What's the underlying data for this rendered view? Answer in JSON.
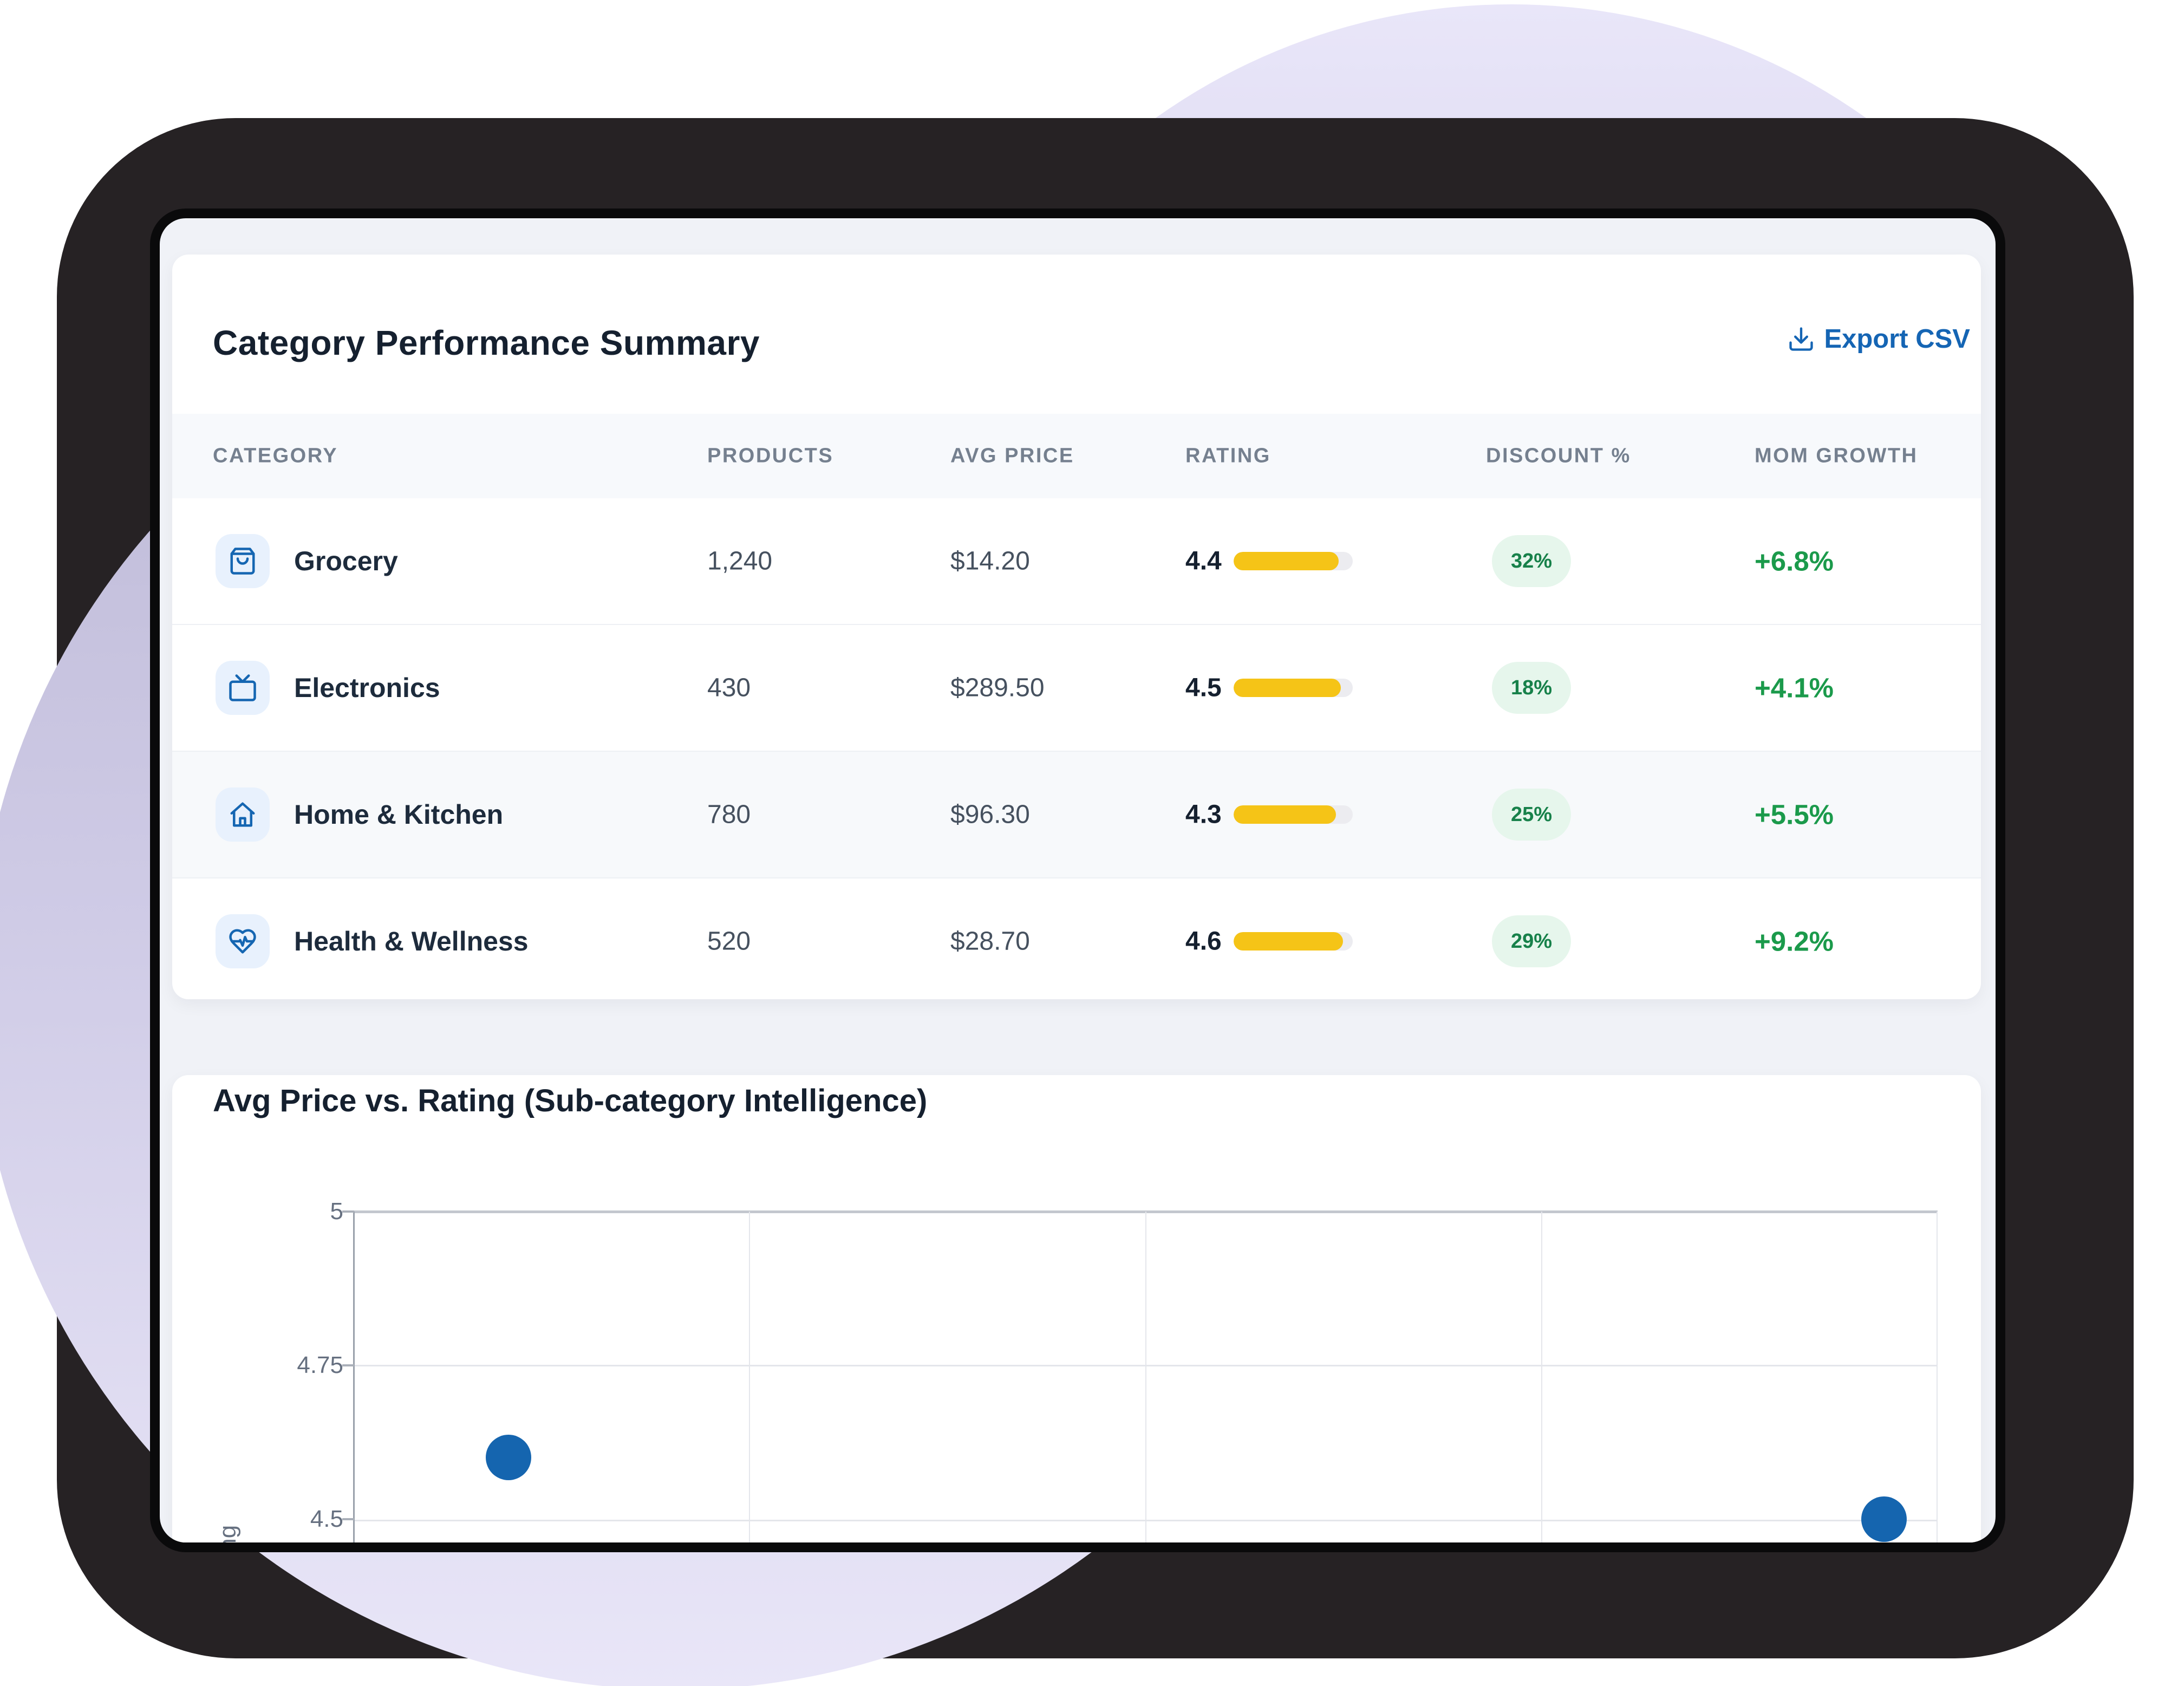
{
  "table_card": {
    "title": "Category Performance Summary",
    "export_label": "Export CSV",
    "columns": [
      "CATEGORY",
      "PRODUCTS",
      "AVG PRICE",
      "RATING",
      "DISCOUNT %",
      "MOM GROWTH"
    ],
    "rows": [
      {
        "category": "Grocery",
        "icon": "shopping-bag-icon",
        "products": "1,240",
        "avg_price": "$14.20",
        "rating": "4.4",
        "rating_pct": 88,
        "discount": "32%",
        "growth": "+6.8%"
      },
      {
        "category": "Electronics",
        "icon": "tv-icon",
        "products": "430",
        "avg_price": "$289.50",
        "rating": "4.5",
        "rating_pct": 90,
        "discount": "18%",
        "growth": "+4.1%"
      },
      {
        "category": "Home & Kitchen",
        "icon": "house-icon",
        "products": "780",
        "avg_price": "$96.30",
        "rating": "4.3",
        "rating_pct": 86,
        "discount": "25%",
        "growth": "+5.5%"
      },
      {
        "category": "Health & Wellness",
        "icon": "heart-pulse-icon",
        "products": "520",
        "avg_price": "$28.70",
        "rating": "4.6",
        "rating_pct": 92,
        "discount": "29%",
        "growth": "+9.2%"
      }
    ]
  },
  "chart_card": {
    "title": "Avg Price vs. Rating (Sub-category Intelligence)"
  },
  "chart_data": {
    "type": "scatter",
    "title": "Avg Price vs. Rating (Sub-category Intelligence)",
    "ylabel": "Rating",
    "y_ticks": [
      {
        "label": "5",
        "value": 5.0
      },
      {
        "label": "4.75",
        "value": 4.75
      },
      {
        "label": "4.5",
        "value": 4.5
      }
    ],
    "ylim_visible": [
      4.5,
      5.0
    ],
    "grid": true,
    "point_color": "#1565af",
    "points": [
      {
        "x_frac": 0.098,
        "rating": 4.6
      },
      {
        "x_frac": 0.966,
        "rating": 4.5
      }
    ],
    "note_xaxis": "x axis cropped below visible area"
  },
  "colors": {
    "accent_blue": "#1565b4",
    "icon_blue": "#1566b2",
    "icon_bg": "#e8f1fd",
    "rating_yellow": "#f5c417",
    "rating_track": "#ececf0",
    "badge_bg": "#e6f6ec",
    "badge_text": "#17814a",
    "growth_green": "#1b9a4b",
    "title_text": "#15202f",
    "muted_text": "#75808f",
    "frame_dark": "#262224",
    "screen_bg": "#f0f2f7",
    "lavender": "#cfcbe6"
  }
}
